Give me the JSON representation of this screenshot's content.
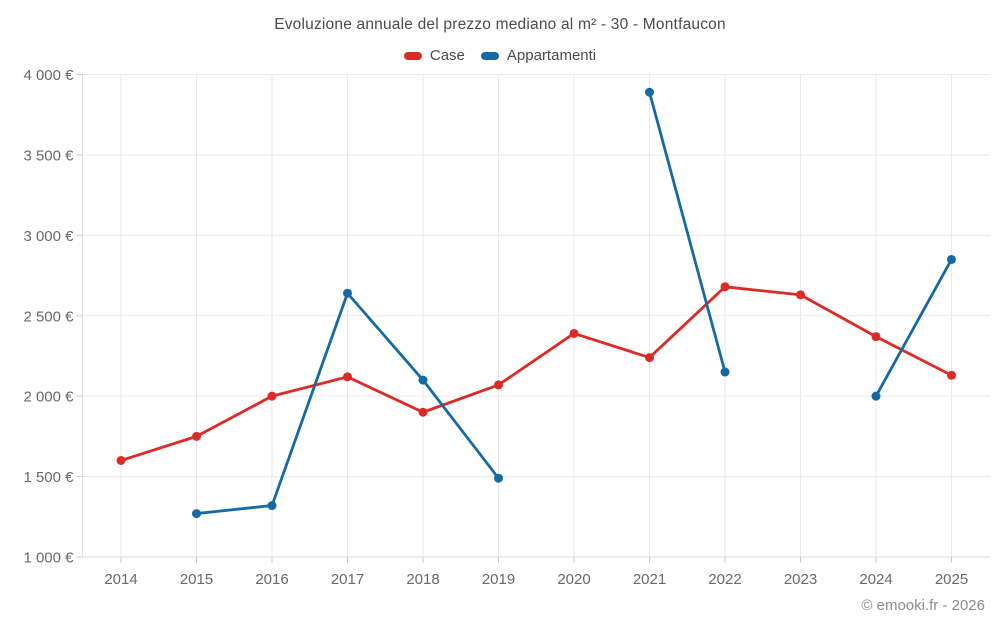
{
  "chart_data": {
    "type": "line",
    "title": "Evoluzione annuale del prezzo mediano al m² - 30 - Montfaucon",
    "categories": [
      "2014",
      "2015",
      "2016",
      "2017",
      "2018",
      "2019",
      "2020",
      "2021",
      "2022",
      "2023",
      "2024",
      "2025"
    ],
    "series": [
      {
        "name": "Case",
        "color": "#dc2b26",
        "values": [
          1600,
          1750,
          2000,
          2120,
          1900,
          2070,
          2390,
          2240,
          2680,
          2630,
          2370,
          2130
        ]
      },
      {
        "name": "Appartamenti",
        "color": "#166aa3",
        "values": [
          null,
          1270,
          1320,
          2640,
          2100,
          1490,
          null,
          3890,
          2150,
          null,
          2000,
          2850
        ]
      }
    ],
    "ylim": [
      1000,
      4000
    ],
    "ytick_step": 500,
    "ytick_labels": [
      "1 000 €",
      "1 500 €",
      "2 000 €",
      "2 500 €",
      "3 000 €",
      "3 500 €",
      "4 000 €"
    ],
    "grid": true,
    "legend_position": "top",
    "line_width": 2.8,
    "marker_radius": 4.5
  },
  "footer": {
    "copyright": "© emooki.fr - 2026"
  },
  "theme": {
    "background": "#ffffff",
    "grid_color": "#e9e9e9",
    "axis_color": "#dddddd",
    "tick_color": "#cccccc",
    "axis_label_color": "#696969",
    "title_color": "#4c4c4c",
    "legend_text_color": "#4c4c4c",
    "watermark_color": "#8c8c8c"
  }
}
